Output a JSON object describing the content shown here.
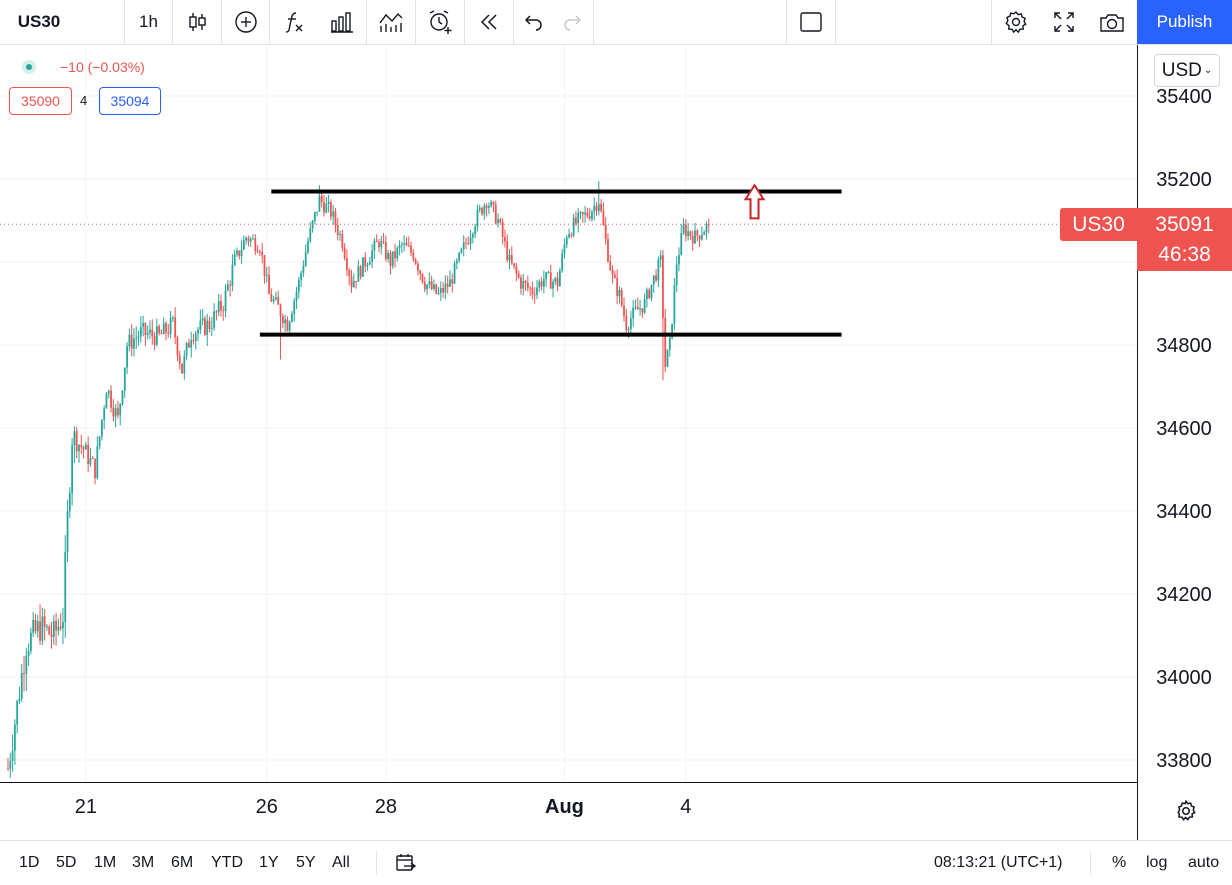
{
  "toolbar": {
    "symbol": "US30",
    "interval": "1h",
    "publish_label": "Publish"
  },
  "legend": {
    "change": "−10 (−0.03%)",
    "bid": "35090",
    "spread": "4",
    "ask": "35094"
  },
  "price_axis": {
    "currency": "USD",
    "symbol_tag": "US30",
    "last_price": "35091",
    "countdown": "46:38"
  },
  "bottom_bar": {
    "ranges": [
      "1D",
      "5D",
      "1M",
      "3M",
      "6M",
      "YTD",
      "1Y",
      "5Y",
      "All"
    ],
    "time": "08:13:21 (UTC+1)",
    "percent": "%",
    "log": "log",
    "auto": "auto"
  },
  "colors": {
    "up": "#26a69a",
    "down": "#ef5350",
    "accent": "#2962ff",
    "lines": "#000000",
    "arrow": "#c62828"
  },
  "chart_data": {
    "type": "candlestick",
    "ylim": [
      33750,
      35450
    ],
    "yticks": [
      33800,
      34000,
      34200,
      34400,
      34600,
      34800,
      35000,
      35200,
      35400
    ],
    "ytick_labels": [
      "33800",
      "34000",
      "34200",
      "34400",
      "34600",
      "34800",
      "35000",
      "35200",
      "35400"
    ],
    "xticks": [
      {
        "label": "21",
        "bar": 34
      },
      {
        "label": "26",
        "bar": 113
      },
      {
        "label": "28",
        "bar": 165
      },
      {
        "label": "Aug",
        "bar": 243,
        "bold": true
      },
      {
        "label": "4",
        "bar": 296
      }
    ],
    "bar_count": 350,
    "close_path": [
      [
        0,
        33780
      ],
      [
        8,
        34080
      ],
      [
        14,
        34120
      ],
      [
        20,
        34100
      ],
      [
        24,
        34150
      ],
      [
        26,
        34380
      ],
      [
        28,
        34580
      ],
      [
        33,
        34550
      ],
      [
        38,
        34500
      ],
      [
        43,
        34700
      ],
      [
        48,
        34620
      ],
      [
        52,
        34800
      ],
      [
        58,
        34830
      ],
      [
        66,
        34820
      ],
      [
        72,
        34850
      ],
      [
        76,
        34740
      ],
      [
        80,
        34830
      ],
      [
        88,
        34850
      ],
      [
        94,
        34900
      ],
      [
        99,
        35000
      ],
      [
        104,
        35060
      ],
      [
        110,
        35040
      ],
      [
        114,
        34920
      ],
      [
        118,
        34890
      ],
      [
        122,
        34850
      ],
      [
        127,
        34950
      ],
      [
        131,
        35050
      ],
      [
        136,
        35150
      ],
      [
        141,
        35120
      ],
      [
        146,
        35050
      ],
      [
        150,
        34950
      ],
      [
        156,
        35000
      ],
      [
        162,
        35050
      ],
      [
        167,
        35000
      ],
      [
        172,
        35040
      ],
      [
        177,
        35020
      ],
      [
        182,
        34950
      ],
      [
        188,
        34920
      ],
      [
        193,
        34950
      ],
      [
        198,
        35020
      ],
      [
        204,
        35100
      ],
      [
        209,
        35150
      ],
      [
        214,
        35100
      ],
      [
        219,
        35000
      ],
      [
        224,
        34950
      ],
      [
        229,
        34930
      ],
      [
        234,
        34960
      ],
      [
        240,
        34950
      ],
      [
        244,
        35070
      ],
      [
        249,
        35100
      ],
      [
        254,
        35120
      ],
      [
        258,
        35150
      ],
      [
        261,
        35050
      ],
      [
        264,
        34960
      ],
      [
        267,
        34920
      ],
      [
        270,
        34850
      ],
      [
        274,
        34880
      ],
      [
        278,
        34900
      ],
      [
        282,
        34960
      ],
      [
        285,
        35000
      ],
      [
        287,
        34750
      ],
      [
        289,
        34800
      ],
      [
        292,
        35000
      ],
      [
        295,
        35080
      ],
      [
        300,
        35060
      ],
      [
        306,
        35090
      ]
    ],
    "support_line": {
      "value": 34825,
      "from_bar": 110,
      "to_bar": 364
    },
    "resistance_line": {
      "value": 35170,
      "from_bar": 115,
      "to_bar": 364
    },
    "current_price_line": 35091,
    "breakout_arrow": {
      "bar": 326,
      "from": 35105,
      "to": 35185
    }
  }
}
